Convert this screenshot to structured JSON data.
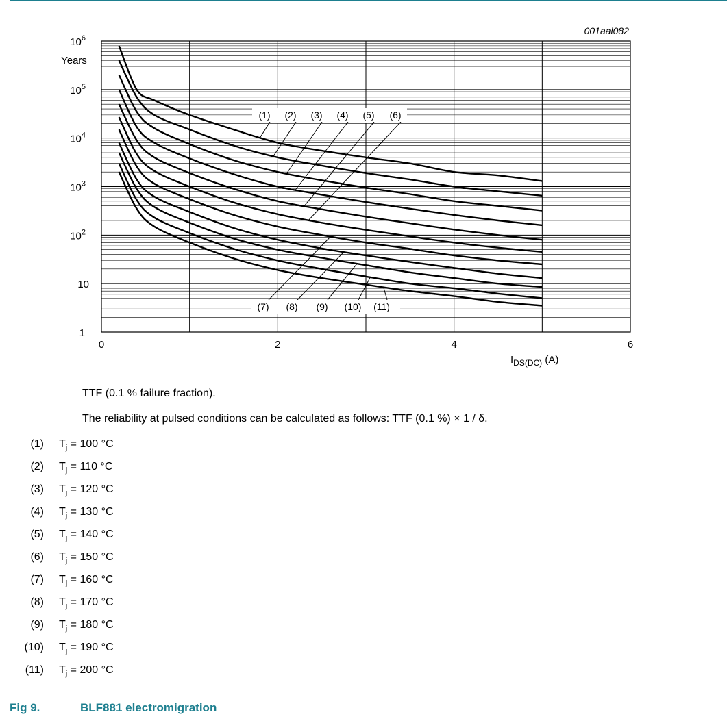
{
  "chart_data": {
    "type": "line",
    "id_label": "001aal082",
    "ylabel": "Years",
    "xlabel": "I",
    "xlabel_sub": "DS(DC)",
    "xlabel_unit": "(A)",
    "xlim": [
      0,
      6
    ],
    "ylim": [
      1,
      1000000
    ],
    "yscale": "log",
    "grid": true,
    "x_ticks": [
      "0",
      "2",
      "4",
      "6"
    ],
    "y_ticks": [
      {
        "base": "10",
        "exp": "6"
      },
      {
        "base": "10",
        "exp": "5"
      },
      {
        "base": "10",
        "exp": "4"
      },
      {
        "base": "10",
        "exp": "3"
      },
      {
        "base": "10",
        "exp": "2"
      },
      {
        "base": "10",
        "exp": ""
      },
      {
        "base": "1",
        "exp": ""
      }
    ],
    "x": [
      0.2,
      0.4,
      0.6,
      1.0,
      1.5,
      2.0,
      2.5,
      3.0,
      3.5,
      4.0,
      4.5,
      5.0
    ],
    "series": [
      {
        "name": "(1)",
        "values": [
          800000,
          100000,
          60000,
          30000,
          15000,
          8000,
          5500,
          4000,
          3000,
          2000,
          1700,
          1300
        ]
      },
      {
        "name": "(2)",
        "values": [
          400000,
          70000,
          30000,
          15000,
          7000,
          4000,
          2700,
          1900,
          1400,
          1000,
          800,
          650
        ]
      },
      {
        "name": "(3)",
        "values": [
          200000,
          35000,
          16000,
          7500,
          3500,
          2000,
          1350,
          950,
          700,
          500,
          400,
          320
        ]
      },
      {
        "name": "(4)",
        "values": [
          100000,
          17000,
          8000,
          3800,
          1800,
          1000,
          680,
          480,
          350,
          260,
          200,
          160
        ]
      },
      {
        "name": "(5)",
        "values": [
          50000,
          9000,
          4000,
          1900,
          900,
          500,
          340,
          240,
          175,
          130,
          100,
          80
        ]
      },
      {
        "name": "(6)",
        "values": [
          27000,
          4700,
          2100,
          1000,
          470,
          270,
          180,
          128,
          94,
          70,
          55,
          45
        ]
      },
      {
        "name": "(7)",
        "values": [
          15000,
          2600,
          1150,
          550,
          260,
          150,
          100,
          70,
          52,
          38,
          30,
          25
        ]
      },
      {
        "name": "(8)",
        "values": [
          8000,
          1400,
          620,
          300,
          140,
          80,
          53,
          38,
          28,
          21,
          16,
          13
        ]
      },
      {
        "name": "(9)",
        "values": [
          5000,
          900,
          380,
          180,
          85,
          50,
          34,
          24,
          17,
          13,
          10,
          8.5
        ]
      },
      {
        "name": "(10)",
        "values": [
          3000,
          530,
          230,
          110,
          52,
          30,
          20,
          14,
          10,
          8,
          6.2,
          5
        ]
      },
      {
        "name": "(11)",
        "values": [
          2000,
          350,
          150,
          70,
          33,
          19,
          13,
          9.5,
          7,
          5.5,
          4.2,
          3.5
        ]
      }
    ]
  },
  "notes": {
    "line1": "TTF (0.1 % failure fraction).",
    "line2": "The reliability at pulsed conditions can be calculated as follows: TTF (0.1 %) × 1 / δ."
  },
  "legend": [
    {
      "num": "(1)",
      "sym": "T",
      "sub": "j",
      "rest": " = 100 °C"
    },
    {
      "num": "(2)",
      "sym": "T",
      "sub": "j",
      "rest": " = 110 °C"
    },
    {
      "num": "(3)",
      "sym": "T",
      "sub": "j",
      "rest": " = 120 °C"
    },
    {
      "num": "(4)",
      "sym": "T",
      "sub": "j",
      "rest": " = 130 °C"
    },
    {
      "num": "(5)",
      "sym": "T",
      "sub": "j",
      "rest": " = 140 °C"
    },
    {
      "num": "(6)",
      "sym": "T",
      "sub": "j",
      "rest": " = 150 °C"
    },
    {
      "num": "(7)",
      "sym": "T",
      "sub": "j",
      "rest": " = 160 °C"
    },
    {
      "num": "(8)",
      "sym": "T",
      "sub": "j",
      "rest": " = 170 °C"
    },
    {
      "num": "(9)",
      "sym": "T",
      "sub": "j",
      "rest": " = 180 °C"
    },
    {
      "num": "(10)",
      "sym": "T",
      "sub": "j",
      "rest": " = 190 °C"
    },
    {
      "num": "(11)",
      "sym": "T",
      "sub": "j",
      "rest": " = 200 °C"
    }
  ],
  "caption": {
    "number": "Fig 9.",
    "title": "BLF881 electromigration"
  },
  "colors": {
    "accent": "#1d7f8f",
    "grid": "#000000",
    "curve": "#000000"
  }
}
